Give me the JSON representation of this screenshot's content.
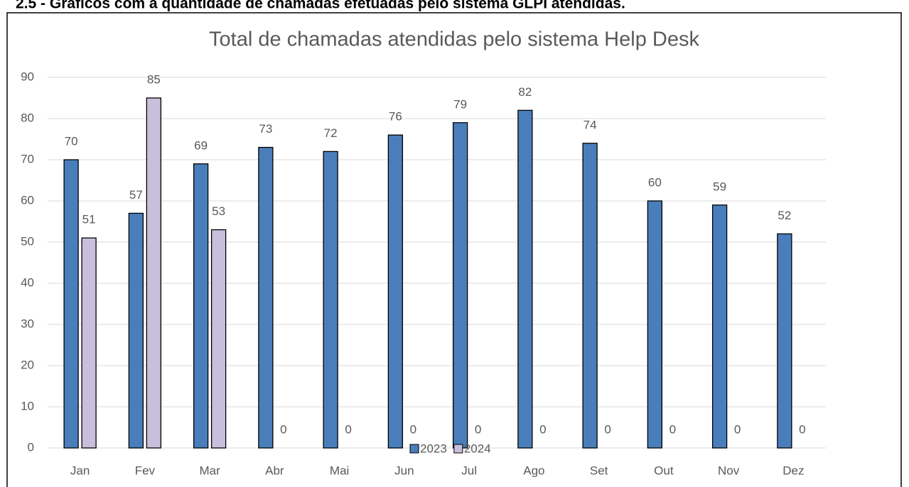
{
  "heading": "2.5 - Gráficos com a quantidade de chamadas efetuadas pelo sistema GLPI atendidas.",
  "chart_data": {
    "type": "bar",
    "title": "Total de chamadas atendidas pelo sistema Help Desk",
    "categories": [
      "Jan",
      "Fev",
      "Mar",
      "Abr",
      "Mai",
      "Jun",
      "Jul",
      "Ago",
      "Set",
      "Out",
      "Nov",
      "Dez"
    ],
    "series": [
      {
        "name": "2023",
        "color": "#4a7ebb",
        "values": [
          70,
          57,
          69,
          73,
          72,
          76,
          79,
          82,
          74,
          60,
          59,
          52
        ]
      },
      {
        "name": "2024",
        "color": "#c9bedb",
        "values": [
          51,
          85,
          53,
          0,
          0,
          0,
          0,
          0,
          0,
          0,
          0,
          0
        ]
      }
    ],
    "ylim": [
      0,
      90
    ],
    "yticks": [
      0,
      10,
      20,
      30,
      40,
      50,
      60,
      70,
      80,
      90
    ],
    "grid": true,
    "legend": "bottom"
  }
}
